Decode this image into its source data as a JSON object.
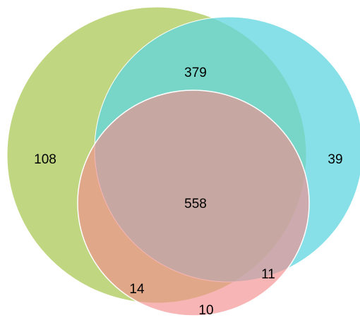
{
  "diagram": {
    "type": "venn",
    "sets": [
      {
        "id": "A",
        "color": "#B5CF6B"
      },
      {
        "id": "B",
        "color": "#5FD6DF"
      },
      {
        "id": "C",
        "color": "#F28D8D"
      }
    ],
    "regions": [
      {
        "sets": [
          "A"
        ],
        "value": "108"
      },
      {
        "sets": [
          "B"
        ],
        "value": "39"
      },
      {
        "sets": [
          "A",
          "B"
        ],
        "value": "379"
      },
      {
        "sets": [
          "A",
          "B",
          "C"
        ],
        "value": "558"
      },
      {
        "sets": [
          "A",
          "C"
        ],
        "value": "14"
      },
      {
        "sets": [
          "B",
          "C"
        ],
        "value": "11"
      },
      {
        "sets": [
          "C"
        ],
        "value": "10"
      }
    ]
  }
}
